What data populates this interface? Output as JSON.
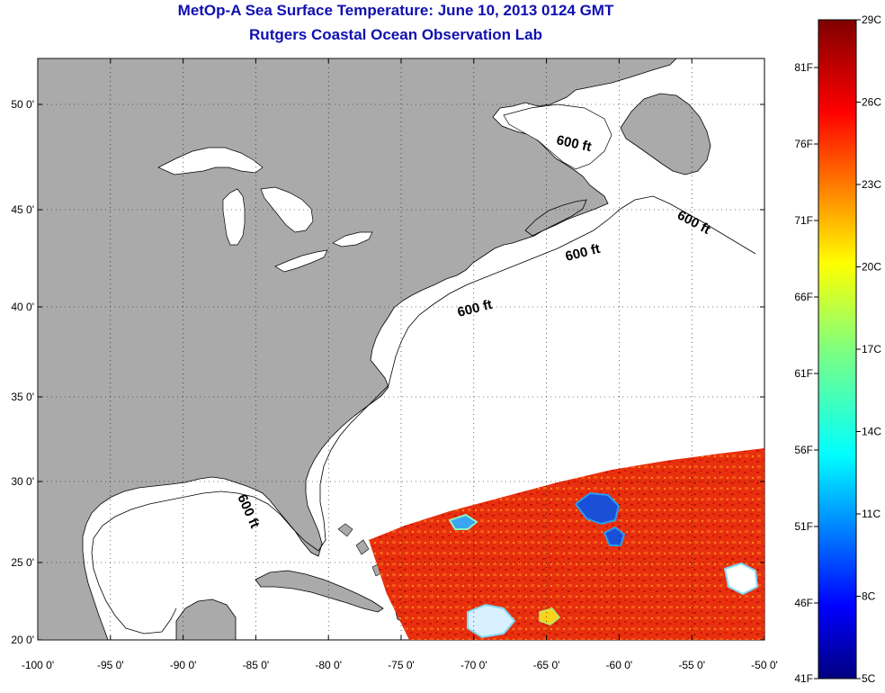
{
  "title": {
    "line1": "MetOp-A Sea Surface Temperature:  June 10, 2013 0124 GMT",
    "line2": "Rutgers Coastal Ocean Observation Lab"
  },
  "longitude_ticks": [
    "-100 0'",
    "-95 0'",
    "-90 0'",
    "-85 0'",
    "-80 0'",
    "-75 0'",
    "-70 0'",
    "-65 0'",
    "-60 0'",
    "-55 0'",
    "-50 0'"
  ],
  "latitude_ticks": [
    "50 0'",
    "45 0'",
    "40 0'",
    "35 0'",
    "30 0'",
    "25 0'",
    "20 0'"
  ],
  "isobath_labels": [
    "600 ft",
    "600 ft",
    "600 ft",
    "600 ft",
    "600 ft"
  ],
  "colorbar": {
    "celsius_labels": [
      "29C",
      "26C",
      "23C",
      "20C",
      "17C",
      "14C",
      "11C",
      "8C",
      "5C"
    ],
    "fahrenheit_labels": [
      "81F",
      "76F",
      "71F",
      "66F",
      "61F",
      "56F",
      "51F",
      "46F",
      "41F"
    ]
  },
  "colors": {
    "land": "#aaaaaa",
    "title": "#1010b0",
    "warm": "#e8280c",
    "cold": "#1a4fd8"
  }
}
